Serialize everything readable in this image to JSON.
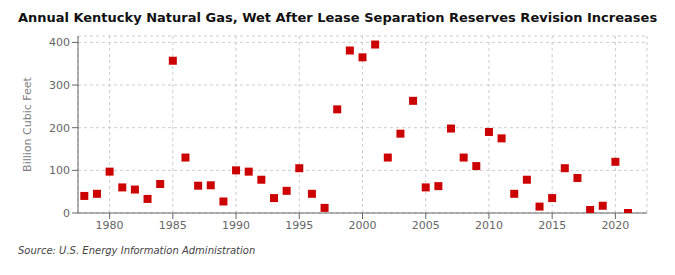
{
  "chart_data": {
    "type": "scatter",
    "title": "Annual Kentucky Natural Gas, Wet After Lease Separation Reserves Revision Increases",
    "ylabel": "Billion Cubic Feet",
    "annotation": "Source: U.S. Energy Information Administration",
    "color": "#cc0000",
    "marker": "square",
    "grid": true,
    "xlim": [
      1977.5,
      2022.5
    ],
    "ylim": [
      0,
      415
    ],
    "xticks": [
      1980,
      1985,
      1990,
      1995,
      2000,
      2005,
      2010,
      2015,
      2020
    ],
    "yticks": [
      0,
      100,
      200,
      300,
      400
    ],
    "x": [
      1978,
      1979,
      1980,
      1981,
      1982,
      1983,
      1984,
      1985,
      1986,
      1987,
      1988,
      1989,
      1990,
      1991,
      1992,
      1993,
      1994,
      1995,
      1996,
      1997,
      1998,
      1999,
      2000,
      2001,
      2002,
      2003,
      2004,
      2005,
      2006,
      2007,
      2008,
      2009,
      2010,
      2011,
      2012,
      2013,
      2014,
      2015,
      2016,
      2017,
      2018,
      2019,
      2020,
      2021
    ],
    "values": [
      40,
      45,
      97,
      60,
      55,
      33,
      68,
      357,
      130,
      64,
      65,
      27,
      100,
      97,
      78,
      35,
      52,
      105,
      45,
      12,
      243,
      381,
      365,
      395,
      130,
      186,
      263,
      60,
      63,
      198,
      130,
      110,
      190,
      175,
      45,
      78,
      15,
      35,
      105,
      82,
      7,
      17,
      120,
      0
    ]
  }
}
